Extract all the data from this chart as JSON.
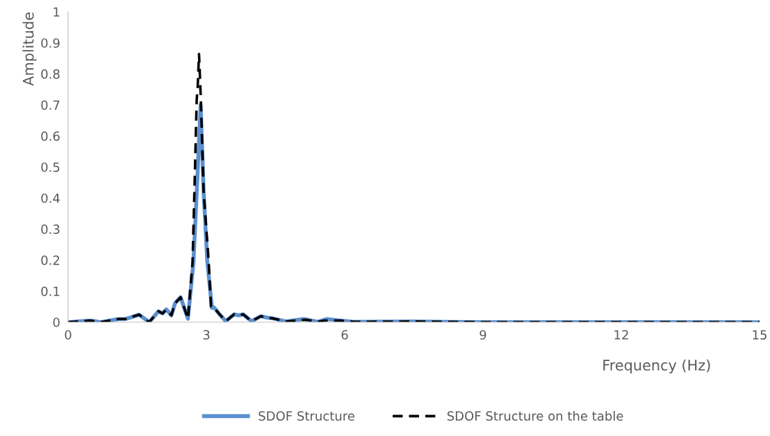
{
  "chart_data": {
    "type": "line",
    "xlabel": "Frequency (Hz)",
    "ylabel": "Amplitude",
    "xlim": [
      0,
      15
    ],
    "xticks": [
      0,
      3,
      6,
      9,
      12,
      15
    ],
    "ylim": [
      0,
      1
    ],
    "yticks": [
      0,
      0.1,
      0.2,
      0.3,
      0.4,
      0.5,
      0.6,
      0.7,
      0.8,
      0.9,
      1
    ],
    "grid": false,
    "legend": "bottom",
    "marker": "none",
    "series": [
      {
        "name": "SDOF Structure",
        "color": "#5b8fd0",
        "line_style": "solid",
        "x": [
          0,
          0.48,
          0.71,
          1.09,
          1.24,
          1.54,
          1.76,
          1.96,
          2.05,
          2.13,
          2.24,
          2.32,
          2.44,
          2.6,
          2.72,
          2.79,
          2.875,
          2.94,
          3.02,
          3.12,
          3.16,
          3.27,
          3.42,
          3.6,
          3.7,
          3.8,
          3.98,
          4.18,
          4.3,
          4.45,
          4.73,
          5.11,
          5.41,
          5.6,
          5.91,
          6.2,
          7.42,
          9,
          12,
          15
        ],
        "values": [
          0,
          0.005,
          0,
          0.01,
          0.01,
          0.024,
          0,
          0.035,
          0.028,
          0.041,
          0.022,
          0.061,
          0.08,
          0.011,
          0.195,
          0.42,
          0.7,
          0.42,
          0.195,
          0.046,
          0.048,
          0.028,
          0.003,
          0.025,
          0.022,
          0.025,
          0.003,
          0.019,
          0.015,
          0.012,
          0.002,
          0.01,
          0.001,
          0.01,
          0.005,
          0.001,
          0.002,
          0,
          0,
          0
        ]
      },
      {
        "name": "SDOF Structure on the table",
        "color": "#000000",
        "line_style": "dashed",
        "x": [
          0,
          0.48,
          0.71,
          1.09,
          1.24,
          1.54,
          1.76,
          1.96,
          2.05,
          2.13,
          2.24,
          2.32,
          2.44,
          2.6,
          2.7,
          2.74,
          2.79,
          2.81,
          2.84,
          2.88,
          2.94,
          3.05,
          3.1,
          3.16,
          3.27,
          3.42,
          3.6,
          3.7,
          3.8,
          3.98,
          4.18,
          4.3,
          4.45,
          4.73,
          5.16,
          5.41,
          5.56,
          5.91,
          6.2,
          7.42,
          9,
          12,
          15
        ],
        "values": [
          0,
          0.005,
          0,
          0.01,
          0.01,
          0.024,
          0,
          0.035,
          0.028,
          0.041,
          0.022,
          0.061,
          0.08,
          0.011,
          0.195,
          0.42,
          0.717,
          0.754,
          0.864,
          0.717,
          0.42,
          0.195,
          0.05,
          0.048,
          0.028,
          0.003,
          0.025,
          0.022,
          0.025,
          0.003,
          0.019,
          0.015,
          0.012,
          0.002,
          0.008,
          0.001,
          0.005,
          0.005,
          0.001,
          0.002,
          0,
          0,
          0
        ]
      }
    ]
  }
}
